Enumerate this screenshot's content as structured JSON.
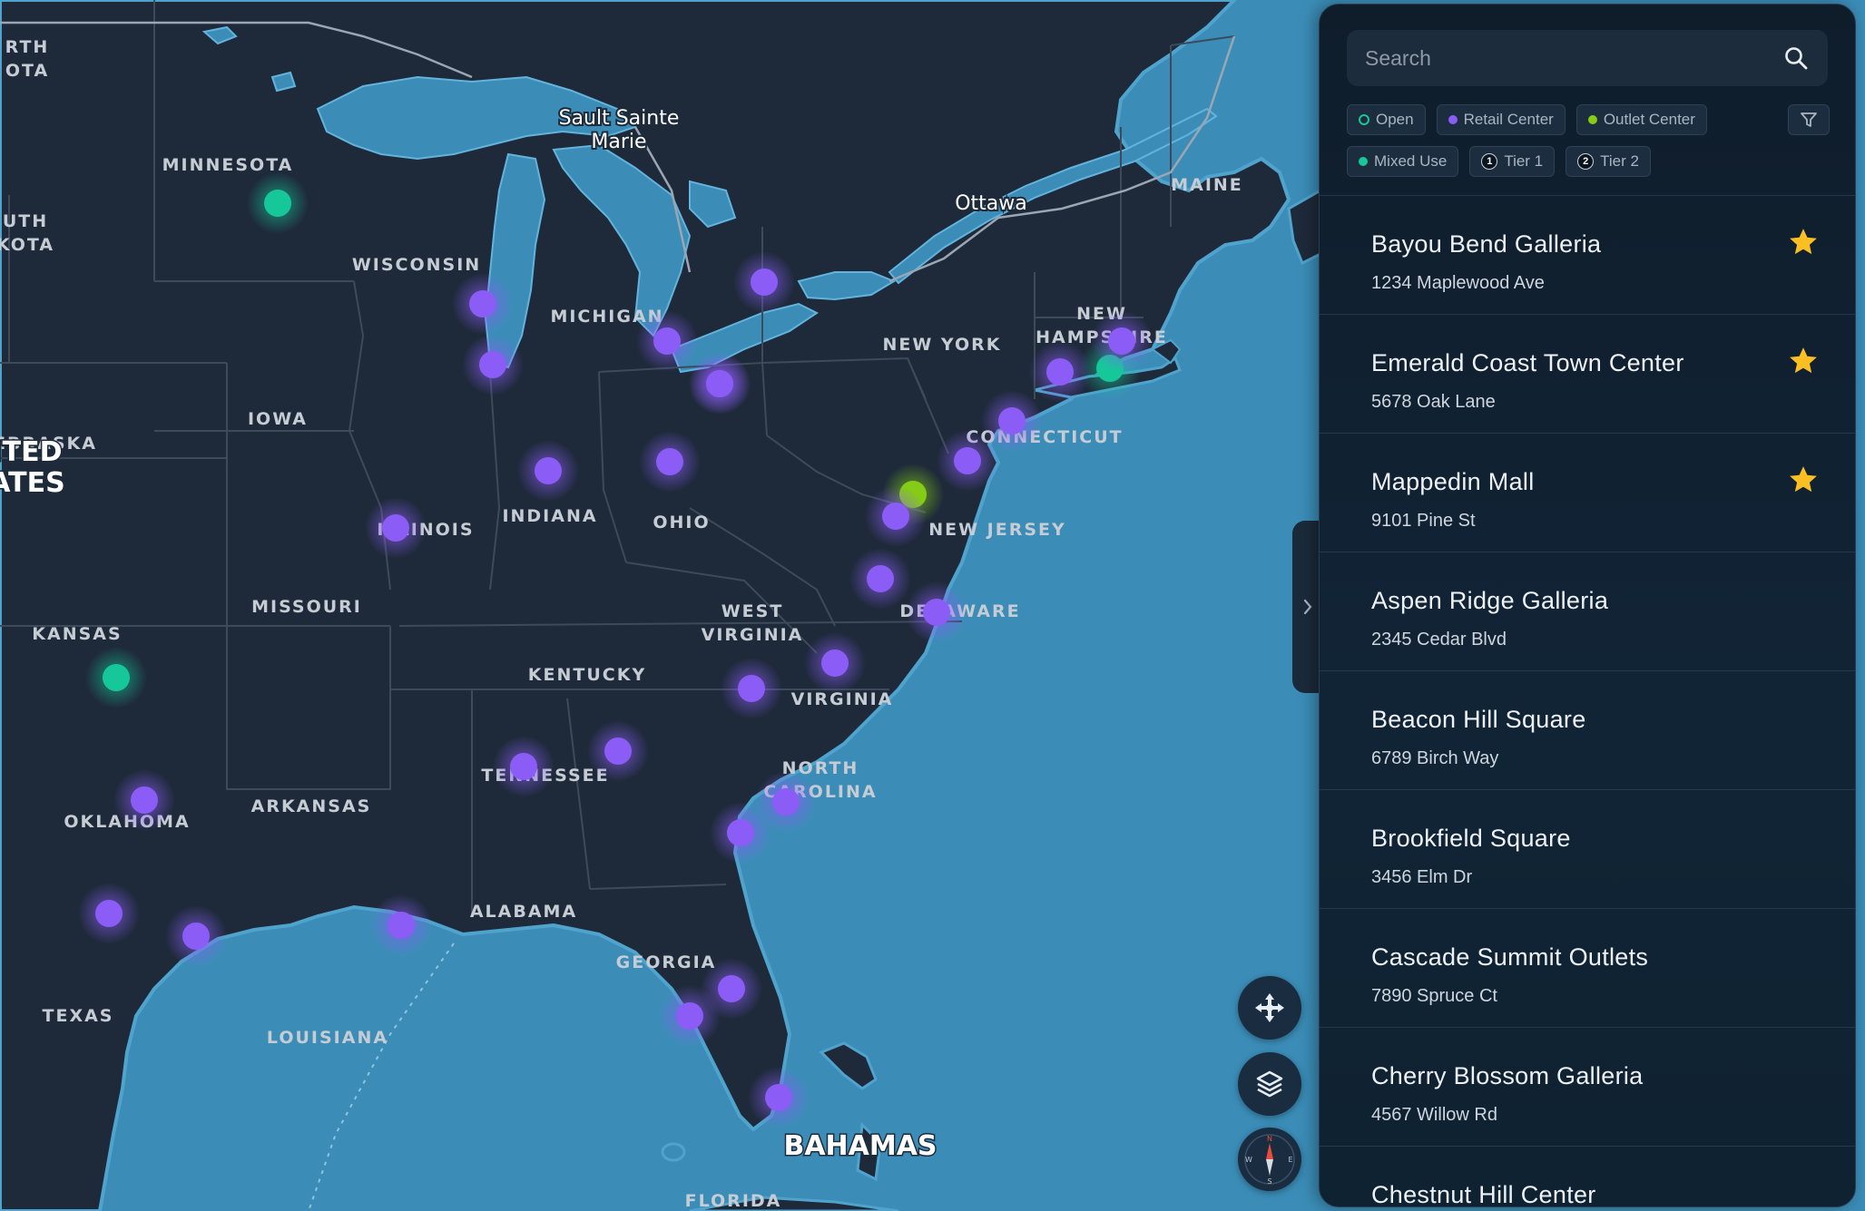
{
  "map": {
    "state_labels": [
      {
        "id": "north-dakota",
        "lines": [
          "RTH",
          "OTA"
        ]
      },
      {
        "id": "south-dakota",
        "lines": [
          "UTH",
          "KOTA"
        ]
      },
      {
        "id": "nebraska",
        "lines": [
          "EBRASKA"
        ]
      },
      {
        "id": "kansas",
        "lines": [
          "KANSAS"
        ]
      },
      {
        "id": "oklahoma",
        "lines": [
          "OKLAHOMA"
        ]
      },
      {
        "id": "texas",
        "lines": [
          "TEXAS"
        ]
      },
      {
        "id": "minnesota",
        "lines": [
          "MINNESOTA"
        ]
      },
      {
        "id": "iowa",
        "lines": [
          "IOWA"
        ]
      },
      {
        "id": "missouri",
        "lines": [
          "MISSOURI"
        ]
      },
      {
        "id": "arkansas",
        "lines": [
          "ARKANSAS"
        ]
      },
      {
        "id": "louisiana",
        "lines": [
          "LOUISIANA"
        ]
      },
      {
        "id": "wisconsin",
        "lines": [
          "WISCONSIN"
        ]
      },
      {
        "id": "illinois",
        "lines": [
          "ILLINOIS"
        ]
      },
      {
        "id": "michigan",
        "lines": [
          "MICHIGAN"
        ]
      },
      {
        "id": "indiana",
        "lines": [
          "INDIANA"
        ]
      },
      {
        "id": "ohio",
        "lines": [
          "OHIO"
        ]
      },
      {
        "id": "kentucky",
        "lines": [
          "KENTUCKY"
        ]
      },
      {
        "id": "tennessee",
        "lines": [
          "TENNESSEE"
        ]
      },
      {
        "id": "alabama",
        "lines": [
          "ALABAMA"
        ]
      },
      {
        "id": "georgia",
        "lines": [
          "GEORGIA"
        ]
      },
      {
        "id": "florida",
        "lines": [
          "FLORIDA"
        ]
      },
      {
        "id": "west-virginia",
        "lines": [
          "WEST",
          "VIRGINIA"
        ]
      },
      {
        "id": "virginia",
        "lines": [
          "VIRGINIA"
        ]
      },
      {
        "id": "north-carolina",
        "lines": [
          "NORTH",
          "CAROLINA"
        ]
      },
      {
        "id": "new-york",
        "lines": [
          "NEW YORK"
        ]
      },
      {
        "id": "new-jersey",
        "lines": [
          "NEW JERSEY"
        ]
      },
      {
        "id": "delaware",
        "lines": [
          "DELAWARE"
        ]
      },
      {
        "id": "connecticut",
        "lines": [
          "CONNECTICUT"
        ]
      },
      {
        "id": "new-hampshire",
        "lines": [
          "NEW",
          "HAMPSHIRE"
        ]
      },
      {
        "id": "maine",
        "lines": [
          "MAINE"
        ]
      }
    ],
    "city_labels": [
      {
        "id": "sault-sainte-marie",
        "lines": [
          "Sault Sainte",
          "Marie"
        ]
      },
      {
        "id": "ottawa",
        "lines": [
          "Ottawa"
        ]
      }
    ],
    "country_labels": [
      {
        "id": "united-states",
        "lines": [
          "ITED",
          "ATES"
        ]
      },
      {
        "id": "bahamas",
        "lines": [
          "BAHAMAS"
        ]
      }
    ],
    "marker_colors": {
      "retail": "#8b5cf6",
      "open": "#16c79a",
      "outlet": "#84cc16"
    },
    "markers": [
      {
        "id": "m-minnesota",
        "type": "open"
      },
      {
        "id": "m-oklahoma",
        "type": "open"
      },
      {
        "id": "m-connecticut-teal",
        "type": "open"
      },
      {
        "id": "m-maryland",
        "type": "outlet"
      },
      {
        "id": "m-wisconsin-n",
        "type": "retail"
      },
      {
        "id": "m-wisconsin-s",
        "type": "retail"
      },
      {
        "id": "m-michigan-n",
        "type": "retail"
      },
      {
        "id": "m-michigan-s",
        "type": "retail"
      },
      {
        "id": "m-toledo",
        "type": "retail"
      },
      {
        "id": "m-cleveland",
        "type": "retail"
      },
      {
        "id": "m-indiana",
        "type": "retail"
      },
      {
        "id": "m-ohio",
        "type": "retail"
      },
      {
        "id": "m-missouri",
        "type": "retail"
      },
      {
        "id": "m-nyc",
        "type": "retail"
      },
      {
        "id": "m-new-jersey",
        "type": "retail"
      },
      {
        "id": "m-ct",
        "type": "retail"
      },
      {
        "id": "m-ma",
        "type": "retail"
      },
      {
        "id": "m-dc",
        "type": "retail"
      },
      {
        "id": "m-virginia",
        "type": "retail"
      },
      {
        "id": "m-norfolk",
        "type": "retail"
      },
      {
        "id": "m-nc-1",
        "type": "retail"
      },
      {
        "id": "m-nc-2",
        "type": "retail"
      },
      {
        "id": "m-alabama",
        "type": "retail"
      },
      {
        "id": "m-atlanta",
        "type": "retail"
      },
      {
        "id": "m-sc",
        "type": "retail"
      },
      {
        "id": "m-savannah",
        "type": "retail"
      },
      {
        "id": "m-texas-n",
        "type": "retail"
      },
      {
        "id": "m-texas-w",
        "type": "retail"
      },
      {
        "id": "m-houston",
        "type": "retail"
      },
      {
        "id": "m-new-orleans",
        "type": "retail"
      },
      {
        "id": "m-orlando",
        "type": "retail"
      },
      {
        "id": "m-tampa",
        "type": "retail"
      },
      {
        "id": "m-miami",
        "type": "retail"
      }
    ]
  },
  "panel": {
    "search": {
      "placeholder": "Search"
    },
    "filters": [
      {
        "label": "Open",
        "marker": "ring",
        "color": "#16c79a"
      },
      {
        "label": "Retail Center",
        "marker": "dot",
        "color": "#8b5cf6"
      },
      {
        "label": "Outlet Center",
        "marker": "dot",
        "color": "#84cc16"
      },
      {
        "label": "Mixed Use",
        "marker": "dot",
        "color": "#16c79a"
      },
      {
        "label": "Tier 1",
        "marker": "num",
        "num": "1"
      },
      {
        "label": "Tier 2",
        "marker": "num",
        "num": "2"
      }
    ],
    "star_color": "#fbbf24",
    "locations": [
      {
        "name": "Bayou Bend Galleria",
        "address": "1234 Maplewood Ave",
        "starred": true
      },
      {
        "name": "Emerald Coast Town Center",
        "address": "5678 Oak Lane",
        "starred": true
      },
      {
        "name": "Mappedin Mall",
        "address": "9101 Pine St",
        "starred": true
      },
      {
        "name": "Aspen Ridge Galleria",
        "address": "2345 Cedar Blvd",
        "starred": false
      },
      {
        "name": "Beacon Hill Square",
        "address": "6789 Birch Way",
        "starred": false
      },
      {
        "name": "Brookfield Square",
        "address": "3456 Elm Dr",
        "starred": false
      },
      {
        "name": "Cascade Summit Outlets",
        "address": "7890 Spruce Ct",
        "starred": false
      },
      {
        "name": "Cherry Blossom Galleria",
        "address": "4567 Willow Rd",
        "starred": false
      },
      {
        "name": "Chestnut Hill Center",
        "address": "",
        "starred": false
      }
    ]
  }
}
